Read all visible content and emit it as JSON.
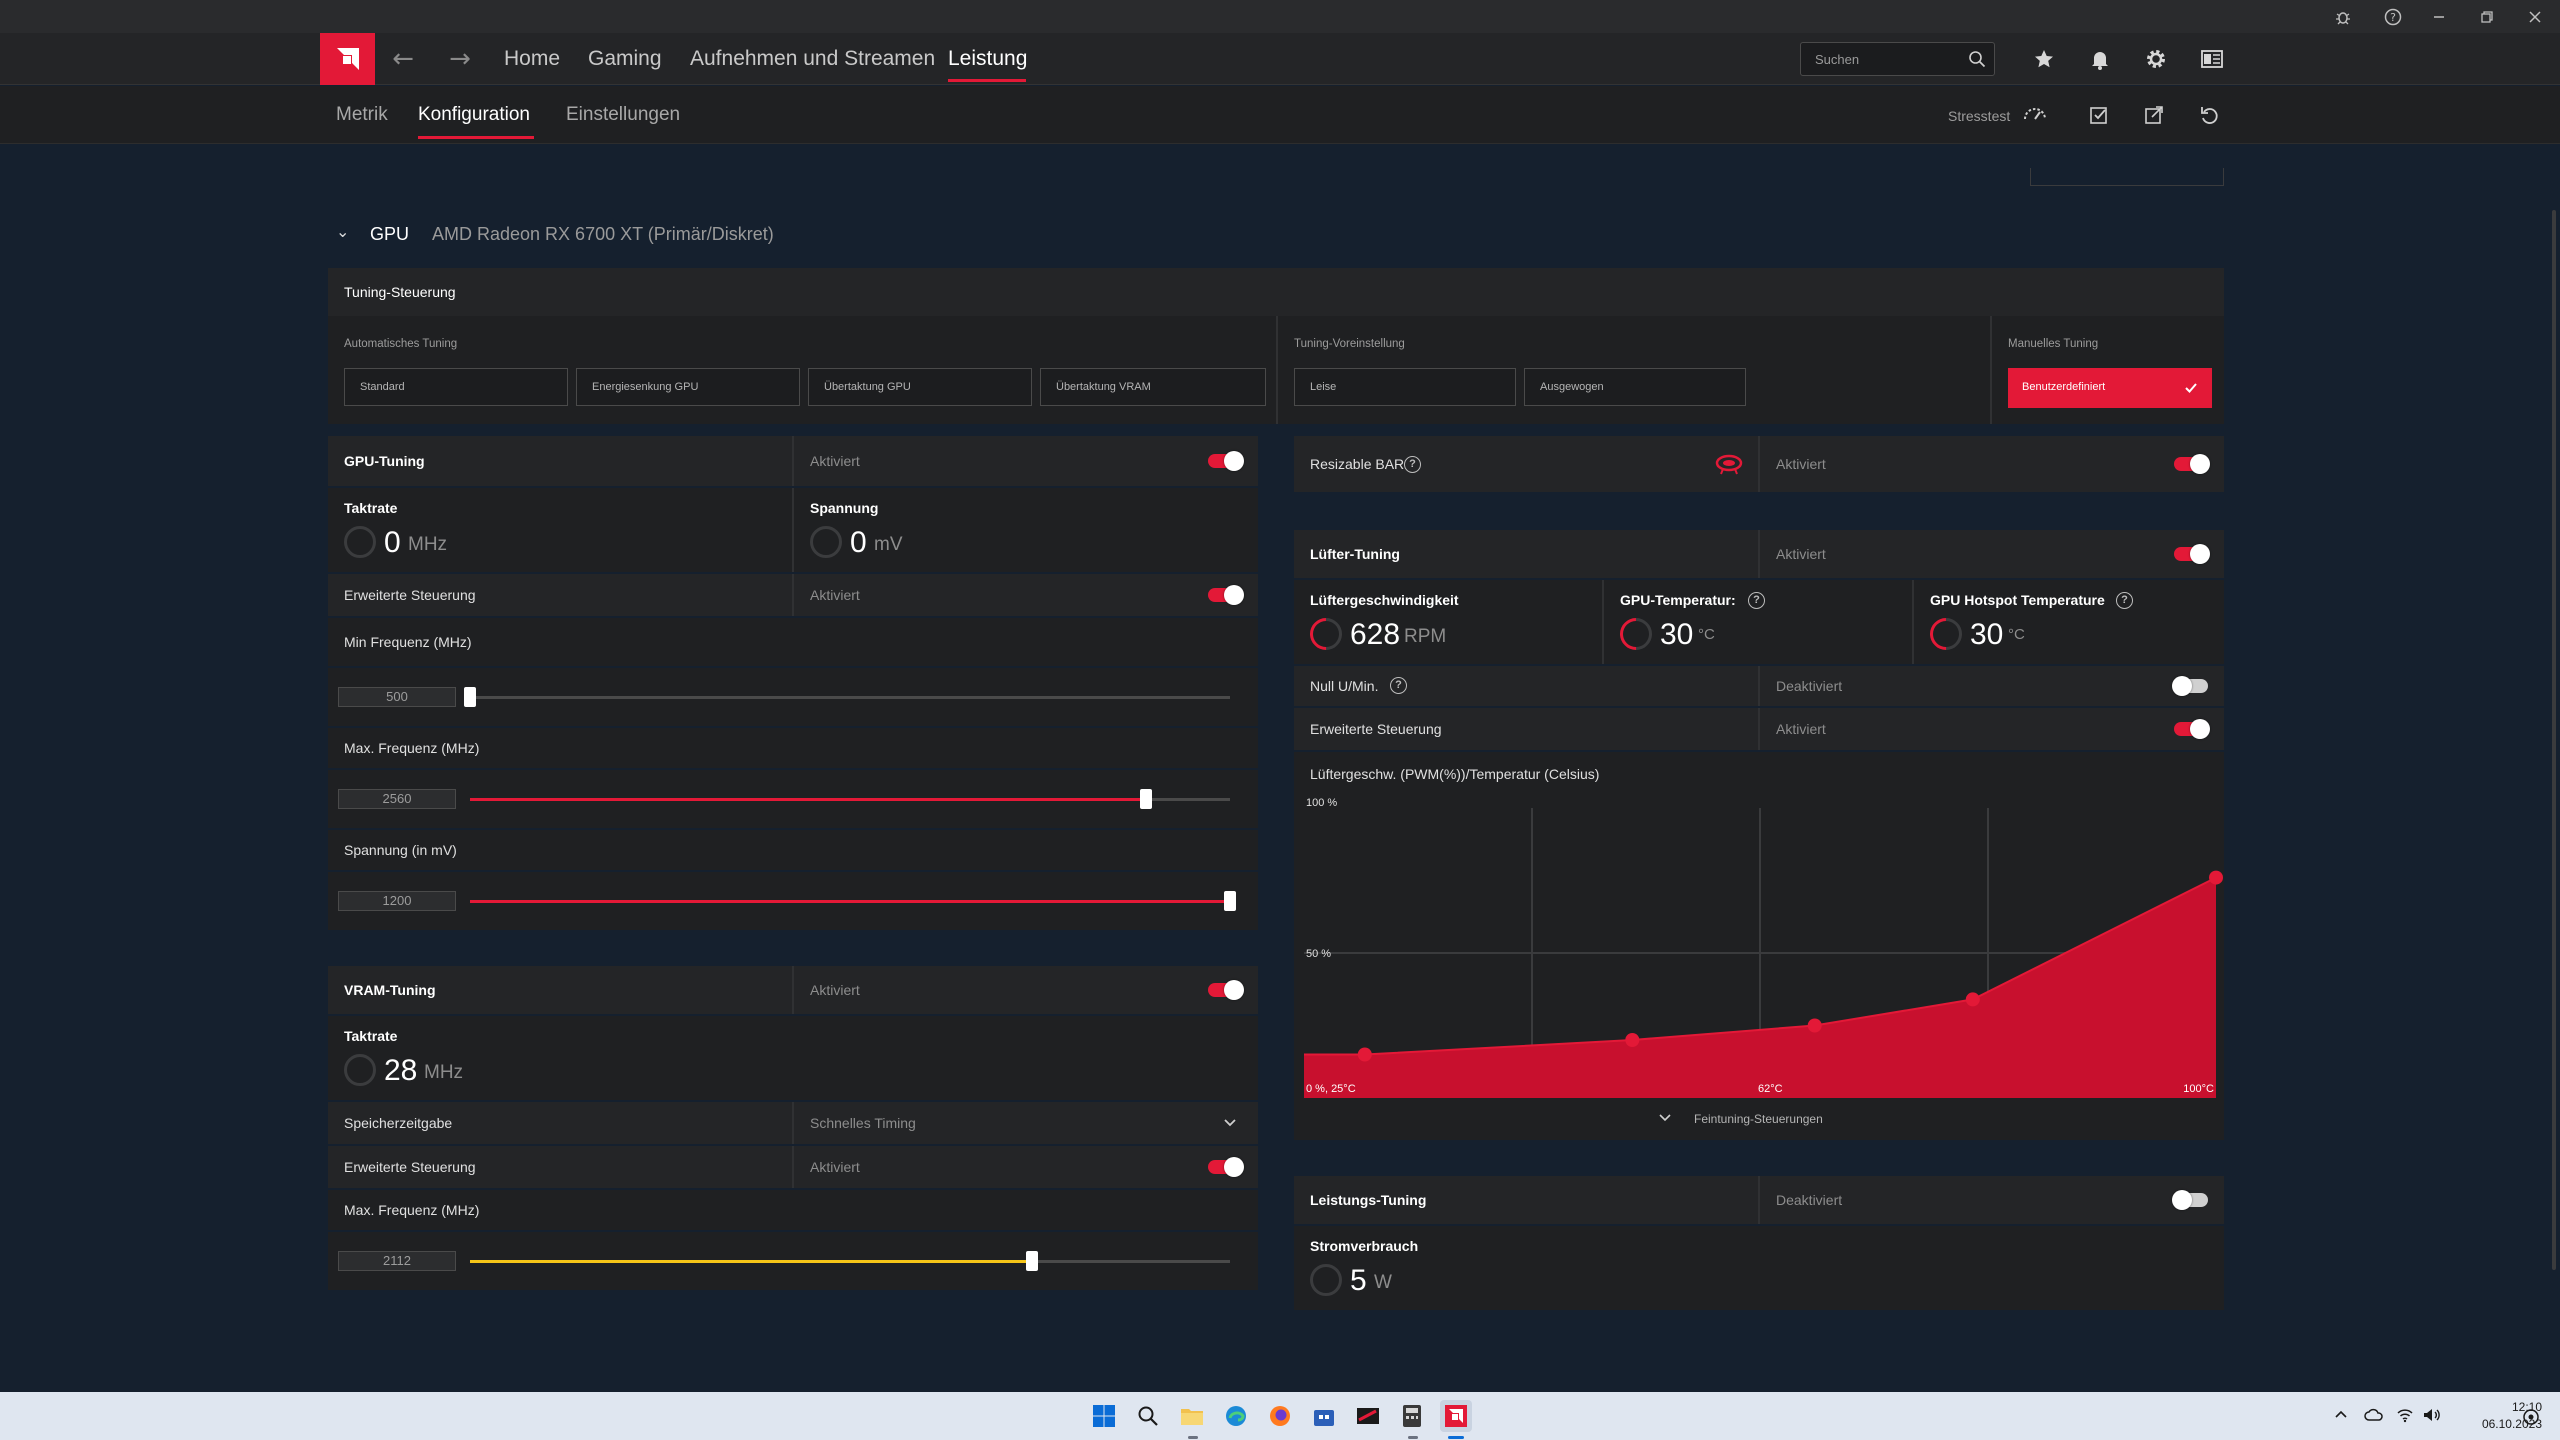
{
  "navbar": {
    "links": [
      "Home",
      "Gaming",
      "Aufnehmen und Streamen",
      "Leistung"
    ],
    "search_placeholder": "Suchen"
  },
  "subnav": {
    "tabs": [
      "Metrik",
      "Konfiguration",
      "Einstellungen"
    ],
    "stresstest_label": "Stresstest"
  },
  "gpu_section": {
    "label": "GPU",
    "device": "AMD Radeon RX 6700 XT (Primär/Diskret)"
  },
  "tuning_control": {
    "title": "Tuning-Steuerung",
    "auto_label": "Automatisches Tuning",
    "auto_buttons": [
      "Standard",
      "Energiesenkung GPU",
      "Übertaktung GPU",
      "Übertaktung VRAM"
    ],
    "preset_label": "Tuning-Voreinstellung",
    "preset_buttons": [
      "Leise",
      "Ausgewogen"
    ],
    "manual_label": "Manuelles Tuning",
    "manual_button": "Benutzerdefiniert"
  },
  "gpu_tuning": {
    "title": "GPU-Tuning",
    "status": "Aktiviert",
    "enabled": true,
    "clock_label": "Taktrate",
    "clock_value": "0",
    "clock_unit": "MHz",
    "voltage_label": "Spannung",
    "voltage_value": "0",
    "voltage_unit": "mV",
    "advanced_label": "Erweiterte Steuerung",
    "advanced_status": "Aktiviert",
    "advanced_enabled": true,
    "min_freq_label": "Min Frequenz (MHz)",
    "min_freq_value": "500",
    "min_freq_fraction": 0.0,
    "max_freq_label": "Max. Frequenz (MHz)",
    "max_freq_value": "2560",
    "max_freq_fraction": 0.89,
    "voltage_mv_label": "Spannung (in mV)",
    "voltage_mv_value": "1200",
    "voltage_mv_fraction": 1.0
  },
  "vram_tuning": {
    "title": "VRAM-Tuning",
    "status": "Aktiviert",
    "enabled": true,
    "clock_label": "Taktrate",
    "clock_value": "28",
    "clock_unit": "MHz",
    "timing_label": "Speicherzeitgabe",
    "timing_value": "Schnelles Timing",
    "advanced_label": "Erweiterte Steuerung",
    "advanced_status": "Aktiviert",
    "advanced_enabled": true,
    "max_freq_label": "Max. Frequenz (MHz)",
    "max_freq_value": "2112",
    "max_freq_fraction": 0.74
  },
  "resizable_bar": {
    "label": "Resizable BAR",
    "status": "Aktiviert",
    "enabled": true
  },
  "fan_tuning": {
    "title": "Lüfter-Tuning",
    "status": "Aktiviert",
    "enabled": true,
    "speed_label": "Lüftergeschwindigkeit",
    "speed_value": "628",
    "speed_unit": "RPM",
    "gpu_temp_label": "GPU-Temperatur:",
    "gpu_temp_value": "30",
    "gpu_temp_unit": "°C",
    "hotspot_label": "GPU Hotspot Temperature",
    "hotspot_value": "30",
    "hotspot_unit": "°C",
    "zero_rpm_label": "Null U/Min.",
    "zero_rpm_status": "Deaktiviert",
    "zero_rpm_enabled": false,
    "advanced_label": "Erweiterte Steuerung",
    "advanced_status": "Aktiviert",
    "advanced_enabled": true,
    "curve_label": "Lüftergeschw. (PWM(%))/Temperatur (Celsius)",
    "fine_tuning_label": "Feintuning-Steuerungen"
  },
  "chart_data": {
    "type": "area",
    "title": "Lüftergeschw. (PWM(%))/Temperatur (Celsius)",
    "xlabel": "",
    "ylabel": "",
    "tick_labels": {
      "y_top": "100 %",
      "y_mid": "50 %",
      "origin": "0 %, 25°C",
      "x_mid": "62°C",
      "x_max": "100°C"
    },
    "xlim": [
      25,
      100
    ],
    "ylim": [
      0,
      100
    ],
    "grid": true,
    "series": [
      {
        "x": [
          30,
          52,
          67,
          80,
          100
        ],
        "y": [
          15,
          20,
          25,
          34,
          76
        ]
      }
    ],
    "color": "#c8102e"
  },
  "power_tuning": {
    "title": "Leistungs-Tuning",
    "status": "Deaktiviert",
    "enabled": false,
    "power_label": "Stromverbrauch",
    "power_value": "5",
    "power_unit": "W"
  },
  "taskbar": {
    "time": "12:10",
    "date": "06.10.2023"
  },
  "colors": {
    "accent": "#e31937",
    "vram_slider": "#f5c518",
    "background": "#15202e"
  }
}
